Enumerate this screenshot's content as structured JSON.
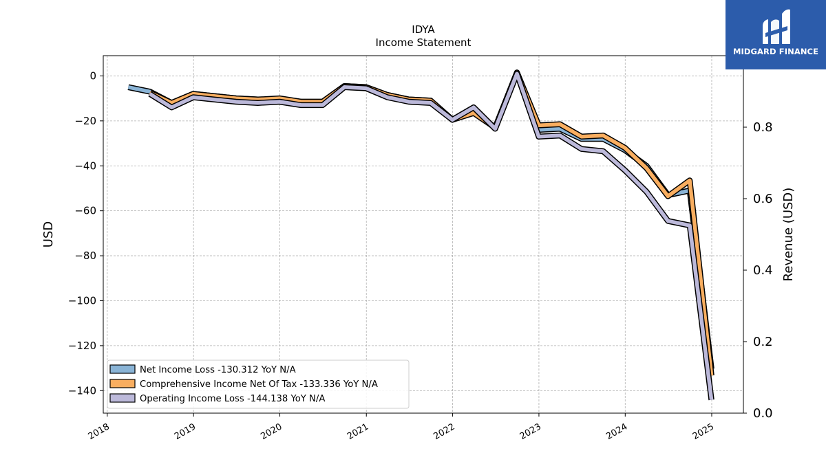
{
  "chart_data": {
    "type": "line",
    "title": "IDYA",
    "subtitle": "Income Statement",
    "ylabel": "USD",
    "y2label": "Revenue (USD)",
    "ylim": [
      -150,
      9
    ],
    "y2lim": [
      0.0,
      1.0
    ],
    "xlim": [
      "2017-12-15",
      "2025-05-15"
    ],
    "x_ticks": [
      "2018",
      "2019",
      "2020",
      "2021",
      "2022",
      "2023",
      "2024",
      "2025"
    ],
    "y_ticks": [
      "0",
      "−20",
      "−40",
      "−60",
      "−80",
      "−100",
      "−120",
      "−140"
    ],
    "y2_ticks": [
      "0.0",
      "0.2",
      "0.4",
      "0.6",
      "0.8"
    ],
    "grid": true,
    "legend_position": "lower-left",
    "x": [
      "2018-03-31",
      "2018-06-30",
      "2018-09-30",
      "2018-12-31",
      "2019-03-31",
      "2019-06-30",
      "2019-09-30",
      "2019-12-31",
      "2020-03-31",
      "2020-06-30",
      "2020-09-30",
      "2020-12-31",
      "2021-03-31",
      "2021-06-30",
      "2021-09-30",
      "2021-12-31",
      "2022-03-31",
      "2022-06-30",
      "2022-09-30",
      "2022-12-31",
      "2023-03-31",
      "2023-06-30",
      "2023-09-30",
      "2023-12-31",
      "2024-03-31",
      "2024-06-30",
      "2024-09-30",
      "2024-12-31"
    ],
    "series": [
      {
        "name": "Net Income Loss  -130.312 YoY N/A",
        "color": "#8ab4d6",
        "values": [
          -5.0,
          -7.0,
          -12.0,
          -8.0,
          -9.0,
          -10.0,
          -10.5,
          -10.5,
          -11.5,
          -11.5,
          -4.5,
          -5.0,
          -8.5,
          -10.5,
          -11.0,
          -19.5,
          -16.0,
          -23.0,
          1.5,
          -24.0,
          -23.5,
          -28.0,
          -28.0,
          -33.0,
          -40.0,
          -53.0,
          -51.0,
          -130.3
        ]
      },
      {
        "name": "Comprehensive Income Net Of Tax  -133.336 YoY N/A",
        "color": "#f9ae60",
        "values": [
          null,
          -7.5,
          -12.0,
          -8.0,
          -9.0,
          -10.0,
          -10.5,
          -10.0,
          -11.5,
          -11.5,
          -4.5,
          -5.0,
          -8.5,
          -10.5,
          -11.0,
          -19.5,
          -16.5,
          -23.0,
          1.5,
          -22.0,
          -21.5,
          -27.0,
          -26.5,
          -32.0,
          -41.0,
          -53.5,
          -46.5,
          -133.3
        ]
      },
      {
        "name": "Operating Income Loss  -144.138 YoY N/A",
        "color": "#bcb9da",
        "values": [
          null,
          -8.0,
          -14.0,
          -9.5,
          -10.5,
          -11.5,
          -12.0,
          -11.5,
          -13.0,
          -13.0,
          -5.0,
          -5.5,
          -9.5,
          -11.5,
          -12.0,
          -19.5,
          -14.0,
          -23.5,
          1.0,
          -27.0,
          -26.5,
          -32.5,
          -33.5,
          -42.0,
          -51.5,
          -64.5,
          -66.5,
          -144.1
        ]
      }
    ]
  },
  "logo": {
    "text": "MIDGARD FINANCE",
    "bg_color": "#2c5cab"
  }
}
